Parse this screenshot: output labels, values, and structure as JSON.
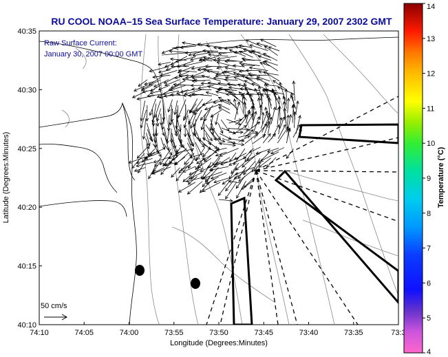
{
  "title": "RU COOL  NOAA–15  Sea Surface Temperature:  January 29, 2007 2302 GMT",
  "inset": {
    "line1": "Raw Surface Current:",
    "line2": "January 30, 2007 00:00 GMT"
  },
  "scale_label": "50 cm/s",
  "axes": {
    "xlabel": "Longitude (Degrees:Minutes)",
    "ylabel": "Latitude (Degrees:Minutes)",
    "x_ticks": [
      "74:10",
      "74:05",
      "74:00",
      "73:55",
      "73:50",
      "73:45",
      "73:40",
      "73:35",
      "73:3"
    ],
    "y_ticks": [
      "40:35",
      "40:30",
      "40:25",
      "40:20",
      "40:15",
      "40:10"
    ]
  },
  "colorbar": {
    "label": "Temperature (°C)",
    "ticks": [
      "14",
      "13",
      "12",
      "11",
      "10",
      "9",
      "8",
      "7",
      "6",
      "5",
      "4"
    ],
    "min": 4,
    "max": 14
  },
  "colors": {
    "title": "#0a0a9a",
    "coast": "#000000",
    "contour": "#888888"
  }
}
